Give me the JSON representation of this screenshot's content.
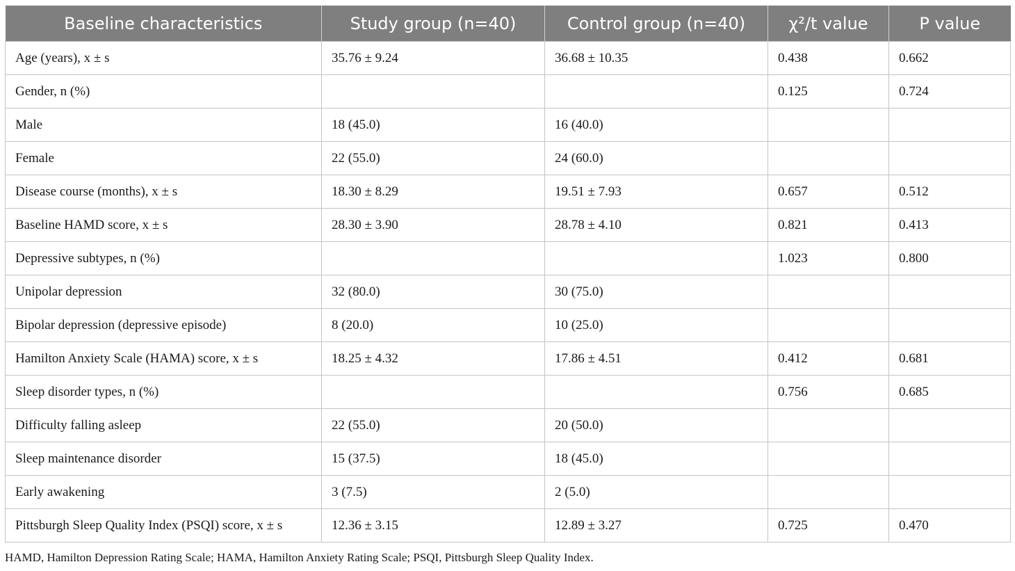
{
  "table": {
    "headers": [
      "Baseline characteristics",
      "Study group (n=40)",
      "Control group (n=40)",
      "χ²/t value",
      "P value"
    ],
    "rows": [
      [
        "Age (years), x ± s",
        "35.76 ± 9.24",
        "36.68 ± 10.35",
        "0.438",
        "0.662"
      ],
      [
        "Gender, n (%)",
        "",
        "",
        "0.125",
        "0.724"
      ],
      [
        "Male",
        "18 (45.0)",
        "16 (40.0)",
        "",
        ""
      ],
      [
        "Female",
        "22 (55.0)",
        "24 (60.0)",
        "",
        ""
      ],
      [
        "Disease course (months), x ± s",
        "18.30 ± 8.29",
        "19.51 ± 7.93",
        "0.657",
        "0.512"
      ],
      [
        "Baseline HAMD score, x ± s",
        "28.30 ± 3.90",
        "28.78 ± 4.10",
        "0.821",
        "0.413"
      ],
      [
        "Depressive subtypes, n (%)",
        "",
        "",
        "1.023",
        "0.800"
      ],
      [
        "Unipolar depression",
        "32 (80.0)",
        "30 (75.0)",
        "",
        ""
      ],
      [
        "Bipolar depression (depressive episode)",
        "8 (20.0)",
        "10 (25.0)",
        "",
        ""
      ],
      [
        "Hamilton Anxiety Scale (HAMA) score, x ± s",
        "18.25 ± 4.32",
        "17.86 ± 4.51",
        "0.412",
        "0.681"
      ],
      [
        "Sleep disorder types, n (%)",
        "",
        "",
        "0.756",
        "0.685"
      ],
      [
        "Difficulty falling asleep",
        "22 (55.0)",
        "20 (50.0)",
        "",
        ""
      ],
      [
        "Sleep maintenance disorder",
        "15 (37.5)",
        "18 (45.0)",
        "",
        ""
      ],
      [
        "Early awakening",
        "3 (7.5)",
        "2 (5.0)",
        "",
        ""
      ],
      [
        "Pittsburgh Sleep Quality Index (PSQI) score, x ± s",
        "12.36 ± 3.15",
        "12.89 ± 3.27",
        "0.725",
        "0.470"
      ]
    ]
  },
  "footnote": "HAMD, Hamilton Depression Rating Scale; HAMA, Hamilton Anxiety Rating Scale; PSQI, Pittsburgh Sleep Quality Index.",
  "colors": {
    "header_bg": "#7f7f7f",
    "header_text": "#ffffff",
    "grid": "#c4c4c4",
    "text": "#1a1a1a"
  }
}
